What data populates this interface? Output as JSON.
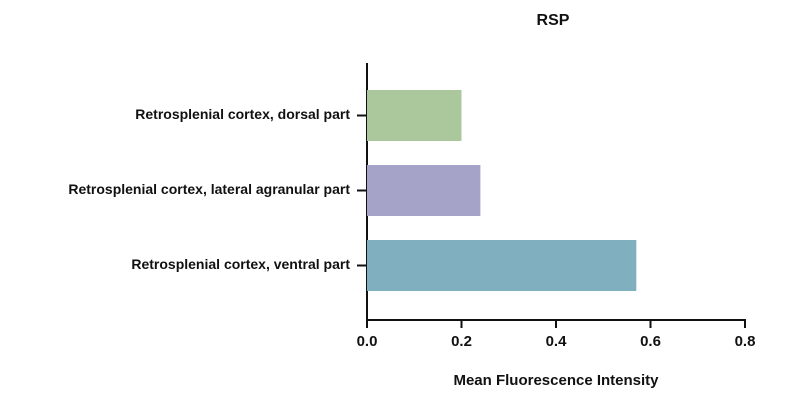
{
  "chart_data": {
    "type": "bar",
    "orientation": "horizontal",
    "title": "RSP",
    "categories": [
      "Retrosplenial cortex, dorsal part",
      "Retrosplenial cortex, lateral agranular part",
      "Retrosplenial cortex, ventral part"
    ],
    "values": [
      0.2,
      0.24,
      0.57
    ],
    "colors": [
      "#aac89b",
      "#a5a3c8",
      "#80afbf"
    ],
    "xlabel": "Mean Fluorescence Intensity",
    "xlim": [
      0,
      0.8
    ],
    "xticks": [
      {
        "value": 0,
        "label": "0.0"
      },
      0.2,
      0.4,
      0.6,
      0.8
    ],
    "grid": false
  }
}
